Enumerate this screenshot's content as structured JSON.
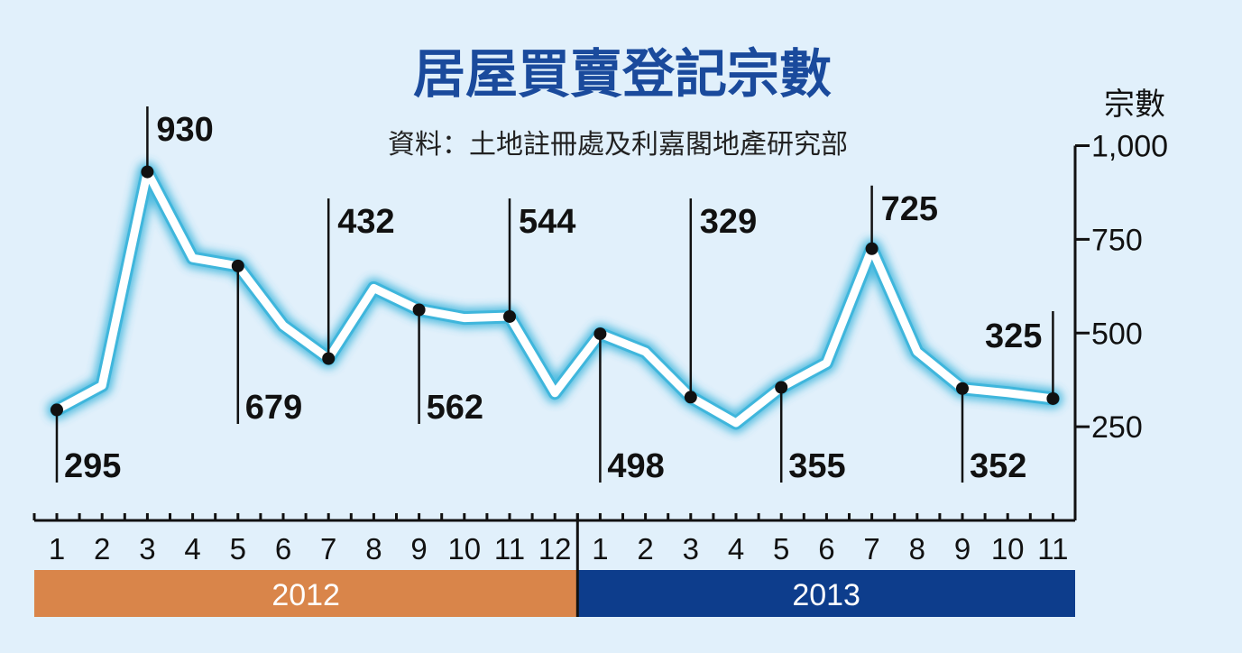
{
  "chart_data": {
    "type": "line",
    "title": "居屋買賣登記宗數",
    "source": "資料：土地註冊處及利嘉閣地產研究部",
    "ylabel": "宗數",
    "ylim": [
      0,
      1000
    ],
    "yticks": [
      250,
      500,
      750,
      1000
    ],
    "ytick_labels": [
      "250",
      "500",
      "750",
      "1,000"
    ],
    "x": [
      "1",
      "2",
      "3",
      "4",
      "5",
      "6",
      "7",
      "8",
      "9",
      "10",
      "11",
      "12",
      "1",
      "2",
      "3",
      "4",
      "5",
      "6",
      "7",
      "8",
      "9",
      "10",
      "11"
    ],
    "years": [
      {
        "label": "2012",
        "months": 12,
        "color": "#d9854a"
      },
      {
        "label": "2013",
        "months": 11,
        "color": "#0d3d8c"
      }
    ],
    "series": [
      {
        "values": [
          295,
          360,
          930,
          700,
          679,
          520,
          432,
          620,
          562,
          540,
          544,
          340,
          498,
          450,
          329,
          260,
          355,
          420,
          725,
          450,
          352,
          340,
          325
        ]
      }
    ],
    "data_labels": [
      {
        "index": 0,
        "text": "295",
        "dir": "down"
      },
      {
        "index": 2,
        "text": "930",
        "dir": "up"
      },
      {
        "index": 4,
        "text": "679",
        "dir": "down"
      },
      {
        "index": 6,
        "text": "432",
        "dir": "up"
      },
      {
        "index": 8,
        "text": "562",
        "dir": "down"
      },
      {
        "index": 10,
        "text": "544",
        "dir": "up"
      },
      {
        "index": 12,
        "text": "498",
        "dir": "down"
      },
      {
        "index": 14,
        "text": "329",
        "dir": "up"
      },
      {
        "index": 16,
        "text": "355",
        "dir": "down"
      },
      {
        "index": 18,
        "text": "725",
        "dir": "up"
      },
      {
        "index": 20,
        "text": "352",
        "dir": "down"
      },
      {
        "index": 22,
        "text": "325",
        "dir": "up-left"
      }
    ],
    "grid": false,
    "legend": "none",
    "colors": {
      "background": "#e1f0fb",
      "line": "#ffffff",
      "line_glow": "#3fb6dc",
      "title": "#1a4a9c"
    }
  }
}
